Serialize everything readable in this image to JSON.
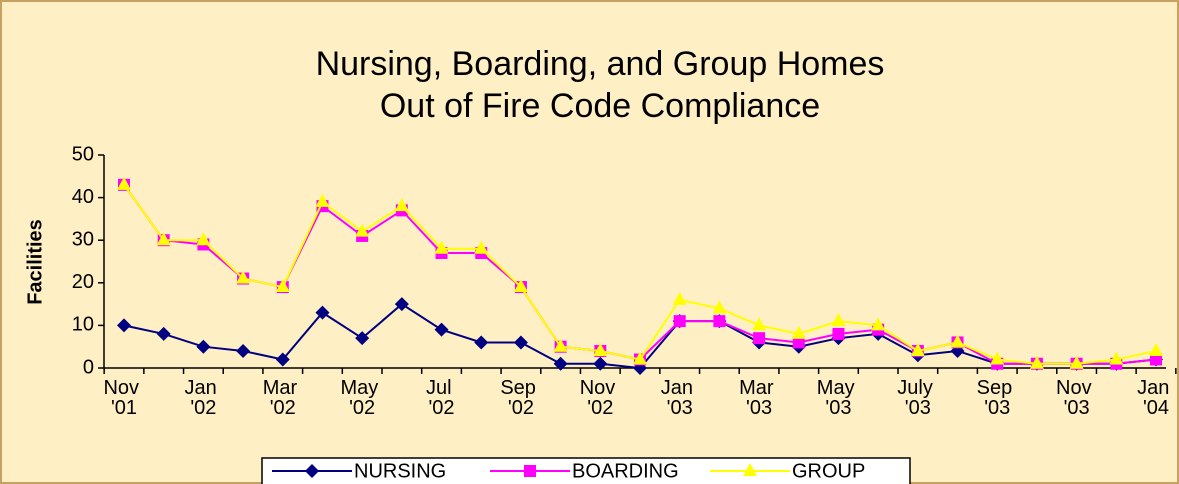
{
  "chart_data": {
    "type": "line",
    "title": [
      "Nursing, Boarding, and Group Homes",
      "Out of Fire Code Compliance"
    ],
    "y_label": "Facilities",
    "categories": [
      "Nov '01",
      null,
      "Jan '02",
      null,
      "Mar '02",
      null,
      "May '02",
      null,
      "Jul '02",
      null,
      "Sep '02",
      null,
      "Nov '02",
      null,
      "Jan '03",
      null,
      "Mar '03",
      null,
      "May '03",
      null,
      "July '03",
      null,
      "Sep '03",
      null,
      "Nov '03",
      null,
      "Jan '04"
    ],
    "series": [
      {
        "name": "NURSING",
        "color": "#000080",
        "marker": "diamond",
        "values": [
          10,
          8,
          5,
          4,
          2,
          13,
          7,
          15,
          9,
          6,
          6,
          1,
          1,
          0,
          11,
          11,
          6,
          5,
          7,
          8,
          3,
          4,
          1,
          1,
          1,
          1,
          2
        ]
      },
      {
        "name": "BOARDING",
        "color": "#FF00FF",
        "marker": "square",
        "values": [
          43,
          30,
          29,
          21,
          19,
          38,
          31,
          37,
          27,
          27,
          19,
          5,
          4,
          2,
          11,
          11,
          7,
          6,
          8,
          9,
          4,
          6,
          1,
          1,
          1,
          1,
          2
        ]
      },
      {
        "name": "GROUP",
        "color": "#FFFF00",
        "marker": "triangle",
        "values": [
          43,
          30,
          30,
          21,
          19,
          39,
          32,
          38,
          28,
          28,
          19,
          5,
          4,
          2,
          16,
          14,
          10,
          8,
          11,
          10,
          4,
          6,
          2,
          1,
          1,
          2,
          4
        ]
      }
    ],
    "ylim": [
      0,
      50
    ],
    "yticks": [
      0,
      10,
      20,
      30,
      40,
      50
    ],
    "legend": "bottom"
  }
}
